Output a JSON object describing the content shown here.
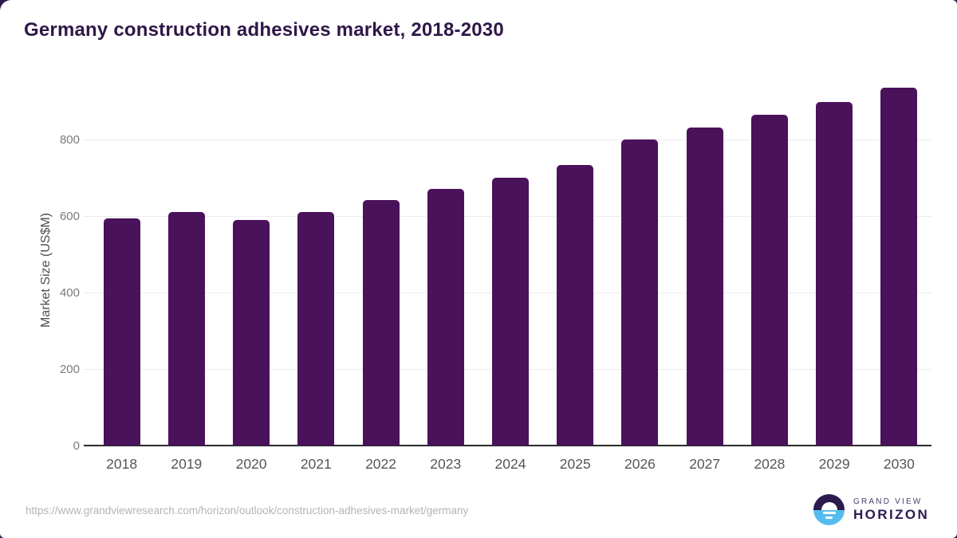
{
  "page": {
    "background_color": "#2d1b4e",
    "card_color": "#ffffff"
  },
  "header": {
    "title": "Germany construction adhesives market, 2018-2030",
    "title_color": "#2e1748"
  },
  "chart_data": {
    "type": "bar",
    "title": "Germany construction adhesives market, 2018-2030",
    "categories": [
      "2018",
      "2019",
      "2020",
      "2021",
      "2022",
      "2023",
      "2024",
      "2025",
      "2026",
      "2027",
      "2028",
      "2029",
      "2030"
    ],
    "values": [
      593,
      611,
      589,
      611,
      641,
      670,
      701,
      733,
      800,
      831,
      864,
      898,
      935
    ],
    "xlabel": "",
    "ylabel": "Market Size (US$M)",
    "yticks": [
      0,
      200,
      400,
      600,
      800
    ],
    "ylim": [
      0,
      960
    ],
    "bar_color": "#4a125a",
    "grid": "horizontal-only",
    "legend": "none"
  },
  "footer": {
    "source_url": "https://www.grandviewresearch.com/horizon/outlook/construction-adhesives-market/germany",
    "logo": {
      "line1": "GRAND VIEW",
      "line2": "HORIZON",
      "icon": "horizon-sunset-icon",
      "icon_top_color": "#2d1b4e",
      "icon_bottom_color": "#55bdee"
    }
  }
}
